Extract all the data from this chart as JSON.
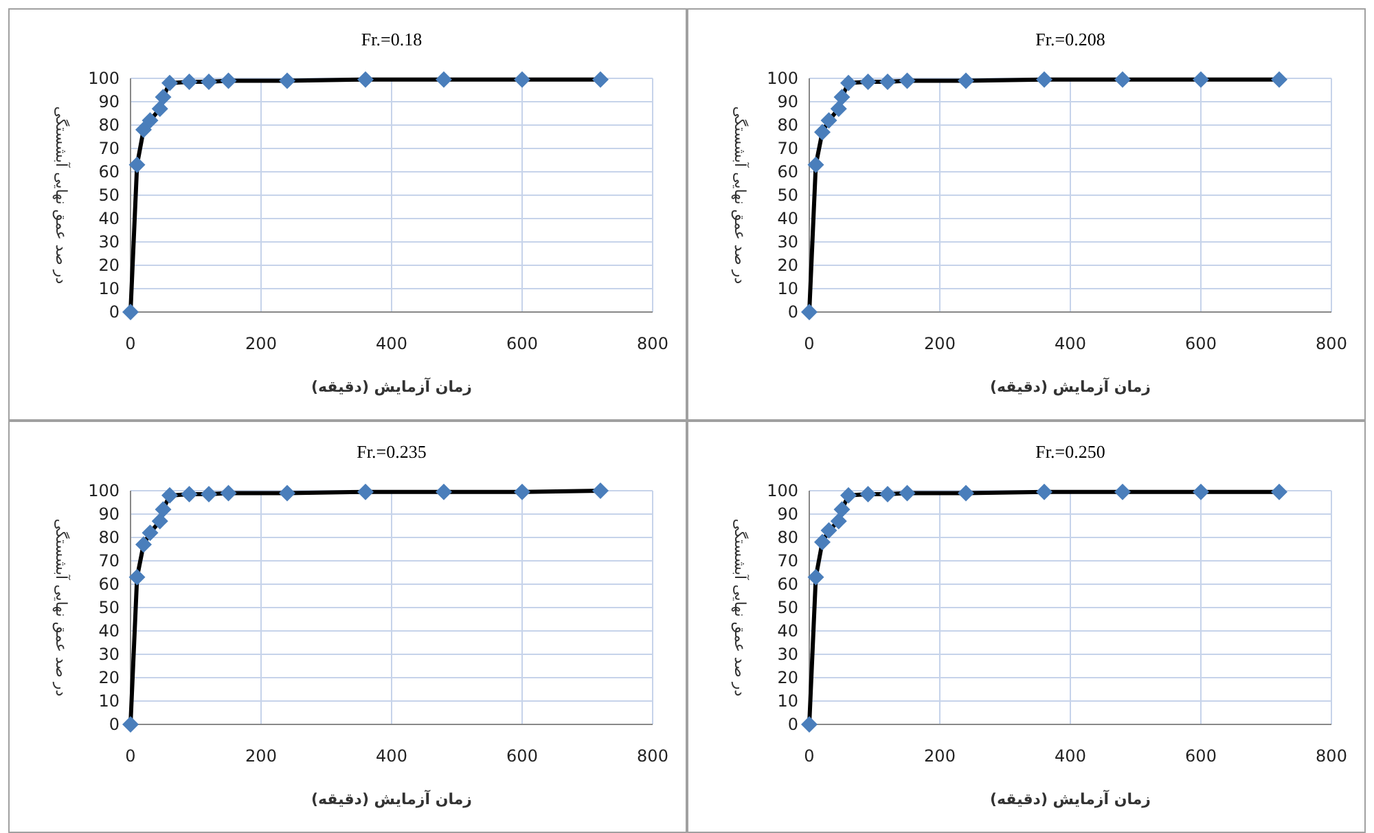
{
  "chart_data": [
    {
      "type": "line",
      "title": "Fr.=0.18",
      "xlabel": "زمان آزمایش (دقیقه)",
      "ylabel": "در صد عمق نهایی آبشستگی",
      "x": [
        0,
        10,
        20,
        30,
        45,
        50,
        60,
        90,
        120,
        150,
        240,
        360,
        480,
        600,
        720
      ],
      "marker": "diamond",
      "grid": true,
      "xlim": [
        0,
        800
      ],
      "xticks": [
        0,
        200,
        400,
        600,
        800
      ],
      "ylim": [
        0,
        100
      ],
      "yticks": [
        0,
        10,
        20,
        30,
        40,
        50,
        60,
        70,
        80,
        90,
        100
      ],
      "series": [
        {
          "color": "#4a7ebb",
          "values": [
            0,
            63,
            78,
            82,
            87,
            92,
            98,
            98.5,
            98.5,
            99,
            99,
            99.5,
            99.5,
            99.5,
            99.5
          ]
        }
      ]
    },
    {
      "type": "line",
      "title": "Fr.=0.208",
      "xlabel": "زمان آزمایش (دقیقه)",
      "ylabel": "در صد عمق نهایی آبشستگی",
      "x": [
        0,
        10,
        20,
        30,
        45,
        50,
        60,
        90,
        120,
        150,
        240,
        360,
        480,
        600,
        720
      ],
      "marker": "diamond",
      "grid": true,
      "xlim": [
        0,
        800
      ],
      "xticks": [
        0,
        200,
        400,
        600,
        800
      ],
      "ylim": [
        0,
        100
      ],
      "yticks": [
        0,
        10,
        20,
        30,
        40,
        50,
        60,
        70,
        80,
        90,
        100
      ],
      "series": [
        {
          "color": "#4a7ebb",
          "values": [
            0,
            63,
            77,
            82,
            87,
            92,
            98,
            98.5,
            98.5,
            99,
            99,
            99.5,
            99.5,
            99.5,
            99.5
          ]
        }
      ]
    },
    {
      "type": "line",
      "title": "Fr.=0.235",
      "xlabel": "زمان آزمایش (دقیقه)",
      "ylabel": "در صد عمق نهایی آبشستگی",
      "x": [
        0,
        10,
        20,
        30,
        45,
        50,
        60,
        90,
        120,
        150,
        240,
        360,
        480,
        600,
        720
      ],
      "marker": "diamond",
      "grid": true,
      "xlim": [
        0,
        800
      ],
      "xticks": [
        0,
        200,
        400,
        600,
        800
      ],
      "ylim": [
        0,
        100
      ],
      "yticks": [
        0,
        10,
        20,
        30,
        40,
        50,
        60,
        70,
        80,
        90,
        100
      ],
      "series": [
        {
          "color": "#4a7ebb",
          "values": [
            0,
            63,
            77,
            82,
            87,
            92,
            98,
            98.5,
            98.5,
            99,
            99,
            99.5,
            99.5,
            99.5,
            100
          ]
        }
      ]
    },
    {
      "type": "line",
      "title": "Fr.=0.250",
      "xlabel": "زمان آزمایش (دقیقه)",
      "ylabel": "در صد عمق نهایی آبشستگی",
      "x": [
        0,
        10,
        20,
        30,
        45,
        50,
        60,
        90,
        120,
        150,
        240,
        360,
        480,
        600,
        720
      ],
      "marker": "diamond",
      "grid": true,
      "xlim": [
        0,
        800
      ],
      "xticks": [
        0,
        200,
        400,
        600,
        800
      ],
      "ylim": [
        0,
        100
      ],
      "yticks": [
        0,
        10,
        20,
        30,
        40,
        50,
        60,
        70,
        80,
        90,
        100
      ],
      "series": [
        {
          "color": "#4a7ebb",
          "values": [
            0,
            63,
            78,
            83,
            87,
            92,
            98,
            98.5,
            98.5,
            99,
            99,
            99.5,
            99.5,
            99.5,
            99.5
          ]
        }
      ]
    }
  ]
}
